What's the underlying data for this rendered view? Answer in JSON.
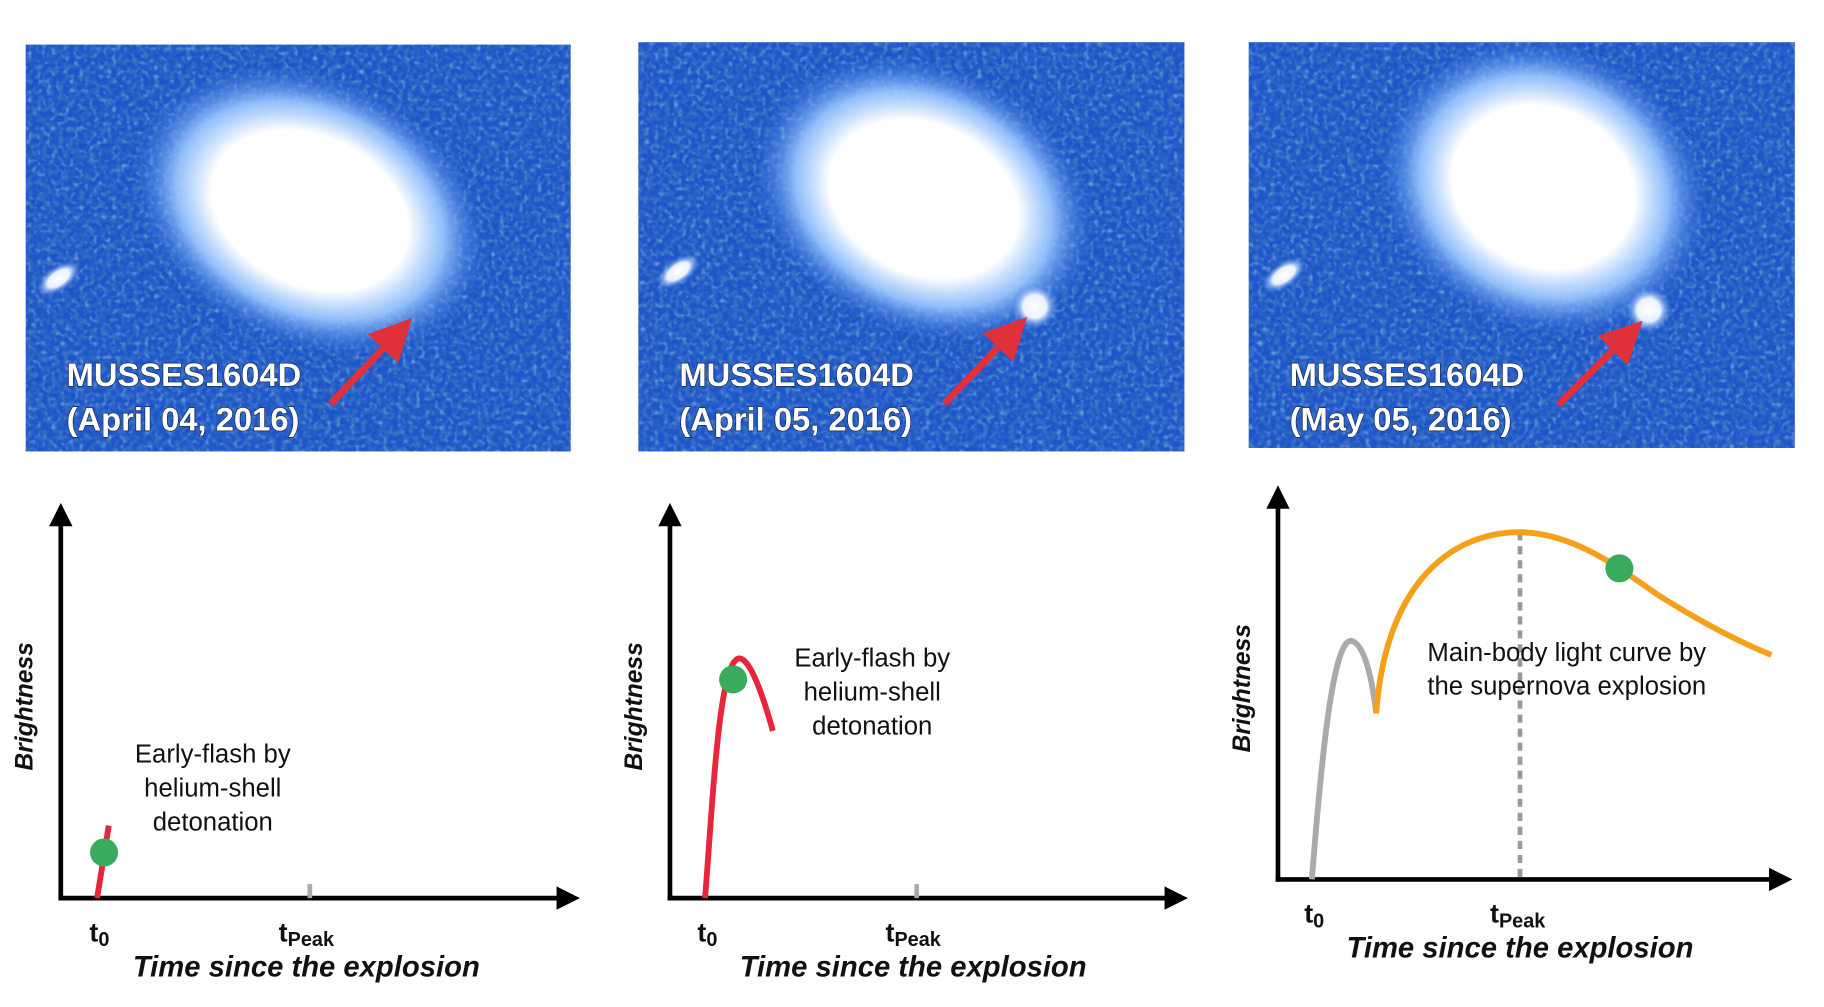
{
  "panels": [
    {
      "image": {
        "name": "MUSSES1604D",
        "date": "(April 04, 2016)"
      },
      "y_label": "Brightness",
      "x_label": "Time since the explosion",
      "x_ticks": [
        {
          "base": "t",
          "sub": "0"
        },
        {
          "base": "t",
          "sub": "Peak"
        }
      ],
      "annotation": [
        "Early-flash by",
        "helium-shell",
        "detonation"
      ]
    },
    {
      "image": {
        "name": "MUSSES1604D",
        "date": "(April 05, 2016)"
      },
      "y_label": "Brightness",
      "x_label": "Time since the explosion",
      "x_ticks": [
        {
          "base": "t",
          "sub": "0"
        },
        {
          "base": "t",
          "sub": "Peak"
        }
      ],
      "annotation": [
        "Early-flash by",
        "helium-shell",
        "detonation"
      ]
    },
    {
      "image": {
        "name": "MUSSES1604D",
        "date": "(May 05, 2016)"
      },
      "y_label": "Brightness",
      "x_label": "Time since the explosion",
      "x_ticks": [
        {
          "base": "t",
          "sub": "0"
        },
        {
          "base": "t",
          "sub": "Peak"
        }
      ],
      "annotation": [
        "Main-body light curve by",
        "the supernova explosion"
      ]
    }
  ]
}
